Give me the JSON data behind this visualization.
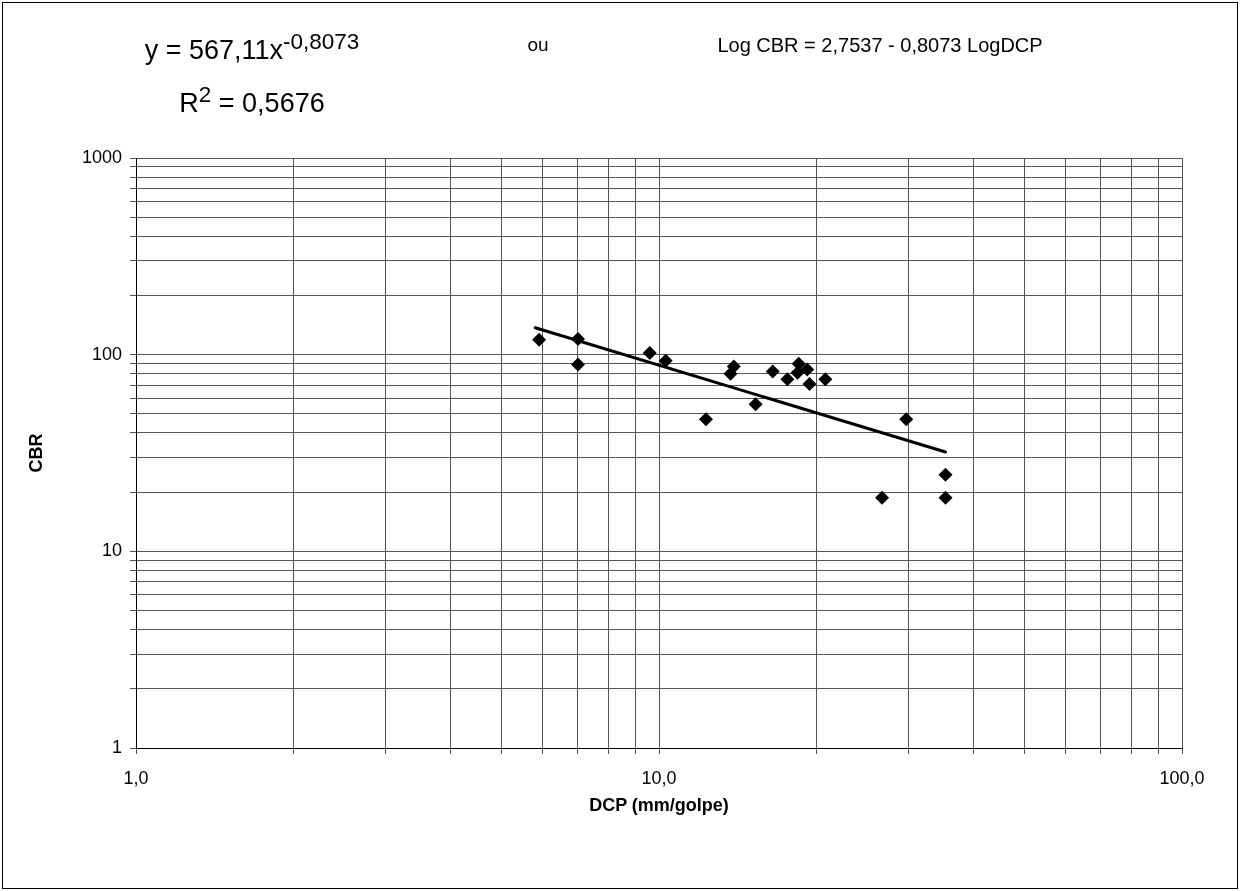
{
  "chart_data": {
    "type": "scatter",
    "xlabel": "DCP (mm/golpe)",
    "ylabel": "CBR",
    "annotations": [
      "y = 567,11x$^{-0,8073}$",
      "R$^{2}$ = 0,5676",
      "ou",
      "Log CBR = 2,7537 - 0,8073 LogDCP"
    ],
    "log": "xy",
    "grid": true,
    "marker": "diamond",
    "xlim": [
      1,
      100
    ],
    "ylim": [
      1,
      1000
    ],
    "xticks": [
      {
        "value": 1,
        "label": "1,0"
      },
      {
        "value": 2,
        "label": null
      },
      {
        "value": 3,
        "label": null
      },
      {
        "value": 4,
        "label": null
      },
      {
        "value": 5,
        "label": null
      },
      {
        "value": 6,
        "label": null
      },
      {
        "value": 7,
        "label": null
      },
      {
        "value": 8,
        "label": null
      },
      {
        "value": 9,
        "label": null
      },
      {
        "value": 10,
        "label": "10,0"
      },
      {
        "value": 20,
        "label": null
      },
      {
        "value": 30,
        "label": null
      },
      {
        "value": 40,
        "label": null
      },
      {
        "value": 50,
        "label": null
      },
      {
        "value": 60,
        "label": null
      },
      {
        "value": 70,
        "label": null
      },
      {
        "value": 80,
        "label": null
      },
      {
        "value": 90,
        "label": null
      },
      {
        "value": 100,
        "label": "100,0"
      }
    ],
    "yticks": [
      1,
      {
        "value": 2,
        "label": null
      },
      {
        "value": 3,
        "label": null
      },
      {
        "value": 4,
        "label": null
      },
      {
        "value": 5,
        "label": null
      },
      {
        "value": 6,
        "label": null
      },
      {
        "value": 7,
        "label": null
      },
      {
        "value": 8,
        "label": null
      },
      {
        "value": 9,
        "label": null
      },
      10,
      {
        "value": 20,
        "label": null
      },
      {
        "value": 30,
        "label": null
      },
      {
        "value": 40,
        "label": null
      },
      {
        "value": 50,
        "label": null
      },
      {
        "value": 60,
        "label": null
      },
      {
        "value": 70,
        "label": null
      },
      {
        "value": 80,
        "label": null
      },
      {
        "value": 90,
        "label": null
      },
      100,
      {
        "value": 200,
        "label": null
      },
      {
        "value": 300,
        "label": null
      },
      {
        "value": 400,
        "label": null
      },
      {
        "value": 500,
        "label": null
      },
      {
        "value": 600,
        "label": null
      },
      {
        "value": 700,
        "label": null
      },
      {
        "value": 800,
        "label": null
      },
      {
        "value": 900,
        "label": null
      },
      1000
    ],
    "series": [
      {
        "color": "#000000",
        "x": [
          5.9,
          7.0,
          7.0,
          9.6,
          10.3,
          12.3,
          13.7,
          13.9,
          15.3,
          16.5,
          17.6,
          18.5,
          18.4,
          19.2,
          19.4,
          20.8,
          29.7,
          35.3,
          35.3,
          26.7
        ],
        "values": [
          119,
          120,
          89,
          102,
          93,
          47,
          80,
          87,
          56,
          82,
          75,
          90,
          81,
          84,
          71,
          75,
          47,
          24.5,
          18.7,
          18.7
        ]
      },
      {
        "type": "line",
        "marker": "none",
        "color": "#000000",
        "x": [
          5.8,
          35.3
        ],
        "values": [
          137,
          32
        ]
      }
    ]
  }
}
